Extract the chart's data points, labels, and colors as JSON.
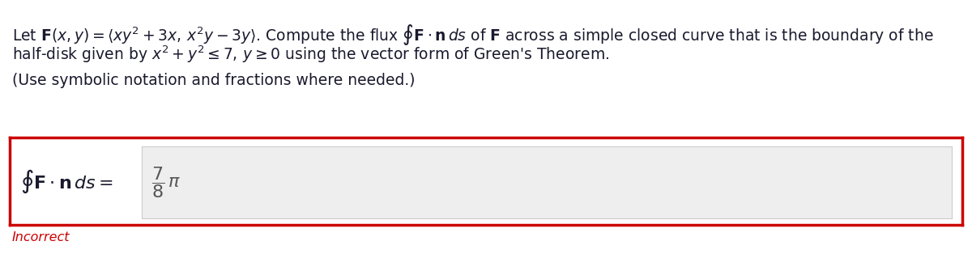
{
  "bg_color": "#ffffff",
  "line1": "Let $\\mathbf{F}(x, y) = \\langle xy^2 + 3x,\\, x^2y - 3y\\rangle$. Compute the flux $\\oint \\mathbf{F} \\cdot \\mathbf{n}\\,ds$ of $\\mathbf{F}$ across a simple closed curve that is the boundary of the",
  "line2": "half-disk given by $x^2 + y^2 \\leq 7,\\, y \\geq 0$ using the vector form of Green's Theorem.",
  "line3": "(Use symbolic notation and fractions where needed.)",
  "answer_label": "$\\oint \\mathbf{F} \\cdot \\mathbf{n}\\,ds =$",
  "answer_value": "$\\dfrac{7}{8}\\,\\pi$",
  "incorrect_text": "Incorrect",
  "box_edge_color": "#cc0000",
  "box_face_color": "#ffffff",
  "inner_box_face_color": "#eeeeee",
  "inner_box_edge_color": "#cccccc",
  "incorrect_color": "#cc0000",
  "text_color": "#1a1a2e",
  "answer_label_color": "#1a1a2e",
  "answer_value_color": "#555555",
  "font_size_main": 13.5,
  "font_size_answer_label": 16,
  "font_size_answer_value": 16,
  "font_size_incorrect": 11.5,
  "fig_width": 12.0,
  "fig_height": 3.4,
  "dpi": 100
}
